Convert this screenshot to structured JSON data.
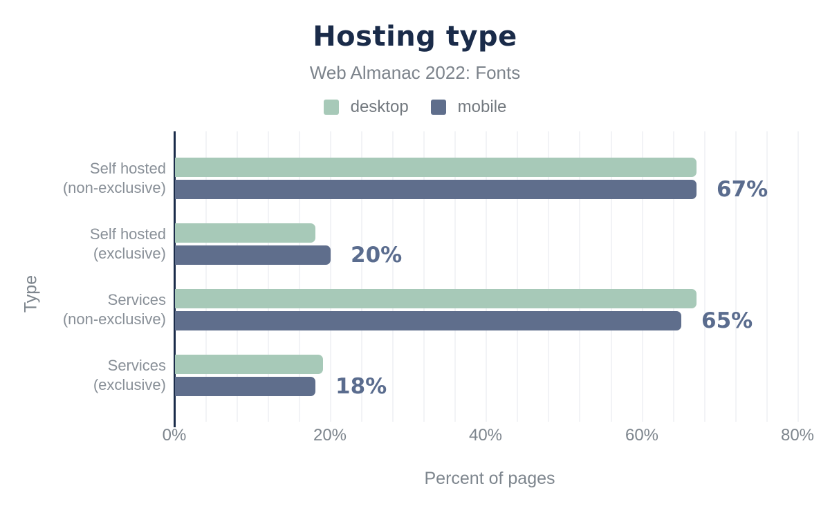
{
  "header": {
    "title": "Hosting type",
    "subtitle": "Web Almanac 2022: Fonts"
  },
  "legend": {
    "items": [
      {
        "label": "desktop",
        "color": "#a7c9b8"
      },
      {
        "label": "mobile",
        "color": "#5f6e8c"
      }
    ]
  },
  "chart_data": {
    "type": "bar",
    "orientation": "horizontal",
    "title": "Hosting type",
    "subtitle": "Web Almanac 2022: Fonts",
    "categories": [
      "Self hosted (non-exclusive)",
      "Self hosted (exclusive)",
      "Services (non-exclusive)",
      "Services (exclusive)"
    ],
    "series": [
      {
        "name": "desktop",
        "color": "#a7c9b8",
        "values": [
          67,
          18,
          67,
          19
        ]
      },
      {
        "name": "mobile",
        "color": "#5f6e8c",
        "values": [
          67,
          20,
          65,
          18
        ]
      }
    ],
    "value_labels": [
      "67%",
      "20%",
      "65%",
      "18%"
    ],
    "labeled_series": "mobile",
    "xlabel": "Percent of pages",
    "ylabel": "Type",
    "x_ticks": [
      {
        "value": 0,
        "label": "0%"
      },
      {
        "value": 20,
        "label": "20%"
      },
      {
        "value": 40,
        "label": "40%"
      },
      {
        "value": 60,
        "label": "60%"
      },
      {
        "value": 80,
        "label": "80%"
      }
    ],
    "xlim": [
      0,
      81
    ],
    "minor_gridline_step": 4,
    "grid": true,
    "legend_position": "top"
  },
  "colors": {
    "title": "#1a2b49",
    "subtitle": "#7c838b",
    "axis_line": "#1a2b49",
    "tick_label": "#7d858d",
    "category_label": "#888f97",
    "value_label": "#5a6c8e",
    "gridline": "#f2f3f6",
    "legend_text": "#73797f"
  }
}
